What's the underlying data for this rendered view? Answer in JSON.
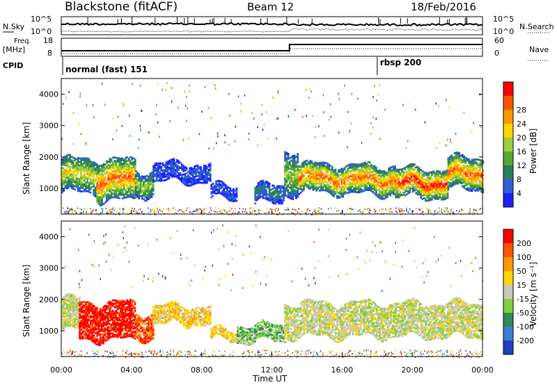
{
  "header": {
    "station": "Blackstone (fitACF)",
    "beam": "Beam 12",
    "date": "18/Feb/2016"
  },
  "noise_panel": {
    "left_label": "N.Sky",
    "right_label": "N.Search",
    "left_ticks": [
      "10^5",
      "10^0"
    ],
    "right_ticks": [
      "10^5",
      "10^0"
    ]
  },
  "freq_panel": {
    "left_label_1": "Freq.",
    "left_label_2": "[MHz]",
    "right_label": "Nave",
    "left_ticks": [
      "18",
      "8"
    ],
    "right_ticks": [
      "60",
      "0"
    ]
  },
  "cpid": {
    "label": "CPID",
    "modes": [
      "normal (fast) 151",
      "rbsp 200"
    ],
    "mode_change_hour": 18.0
  },
  "freq_step_hour": 13.0,
  "power_colorbar": {
    "label": "Power [dB]",
    "ticks": [
      "4",
      "8",
      "12",
      "16",
      "20",
      "24",
      "28"
    ],
    "colors": [
      "#1f1fff",
      "#2e5fd6",
      "#2a7f5f",
      "#55a833",
      "#9fcf3f",
      "#ffd500",
      "#ff9900",
      "#ff5500",
      "#ff0000"
    ]
  },
  "velocity_colorbar": {
    "label": "Velocity [m s⁻¹]",
    "ticks": [
      "200",
      "100",
      "50",
      "15",
      "-15",
      "-50",
      "-100",
      "-200"
    ],
    "colors": [
      "#1f3fbf",
      "#3a7fd6",
      "#2e8b57",
      "#7fd03f",
      "#c8c8c0",
      "#ffd500",
      "#ff9900",
      "#ff5500",
      "#ff0000"
    ]
  },
  "chart_data": {
    "type": "heatmap",
    "xlabel": "Time UT",
    "ylabel": "Slant Range [km]",
    "xticks": [
      "00:00",
      "04:00",
      "08:00",
      "12:00",
      "16:00",
      "20:00",
      "00:00"
    ],
    "yticks": [
      "1000",
      "2000",
      "3000",
      "4000"
    ],
    "xlim_hours": [
      0,
      24
    ],
    "ylim_km": [
      180,
      4500
    ],
    "panels": [
      "Power [dB]",
      "Velocity [m s⁻¹]"
    ],
    "power_echo_bands": [
      {
        "t0": 0.0,
        "t1": 2.0,
        "r_center": 1400,
        "half_width": 550,
        "level": 5
      },
      {
        "t0": 2.0,
        "t1": 4.2,
        "r_center": 1250,
        "half_width": 650,
        "level": 7
      },
      {
        "t0": 4.2,
        "t1": 5.2,
        "r_center": 1150,
        "half_width": 400,
        "level": 4
      },
      {
        "t0": 5.2,
        "t1": 8.5,
        "r_center": 1500,
        "half_width": 300,
        "level": 1
      },
      {
        "t0": 8.5,
        "t1": 10.0,
        "r_center": 850,
        "half_width": 200,
        "level": 1
      },
      {
        "t0": 11.0,
        "t1": 12.7,
        "r_center": 800,
        "half_width": 300,
        "level": 2
      },
      {
        "t0": 12.7,
        "t1": 13.5,
        "r_center": 1500,
        "half_width": 700,
        "level": 4
      },
      {
        "t0": 13.5,
        "t1": 16.0,
        "r_center": 1300,
        "half_width": 450,
        "level": 7
      },
      {
        "t0": 16.0,
        "t1": 19.0,
        "r_center": 1250,
        "half_width": 450,
        "level": 7
      },
      {
        "t0": 19.0,
        "t1": 22.0,
        "r_center": 1150,
        "half_width": 450,
        "level": 8
      },
      {
        "t0": 22.0,
        "t1": 24.0,
        "r_center": 1450,
        "half_width": 500,
        "level": 7
      }
    ],
    "velocity_echo_bands": [
      {
        "t0": 0.0,
        "t1": 1.0,
        "r_center": 1500,
        "half_width": 500,
        "level": 4
      },
      {
        "t0": 1.0,
        "t1": 4.2,
        "r_center": 1300,
        "half_width": 600,
        "level": 8
      },
      {
        "t0": 4.2,
        "t1": 5.2,
        "r_center": 1150,
        "half_width": 400,
        "level": 7
      },
      {
        "t0": 5.2,
        "t1": 8.5,
        "r_center": 1500,
        "half_width": 300,
        "level": 5
      },
      {
        "t0": 8.5,
        "t1": 10.0,
        "r_center": 850,
        "half_width": 150,
        "level": 5
      },
      {
        "t0": 10.0,
        "t1": 12.7,
        "r_center": 900,
        "half_width": 250,
        "level": 3
      },
      {
        "t0": 12.7,
        "t1": 24.0,
        "r_center": 1350,
        "half_width": 550,
        "level": 4
      }
    ]
  }
}
